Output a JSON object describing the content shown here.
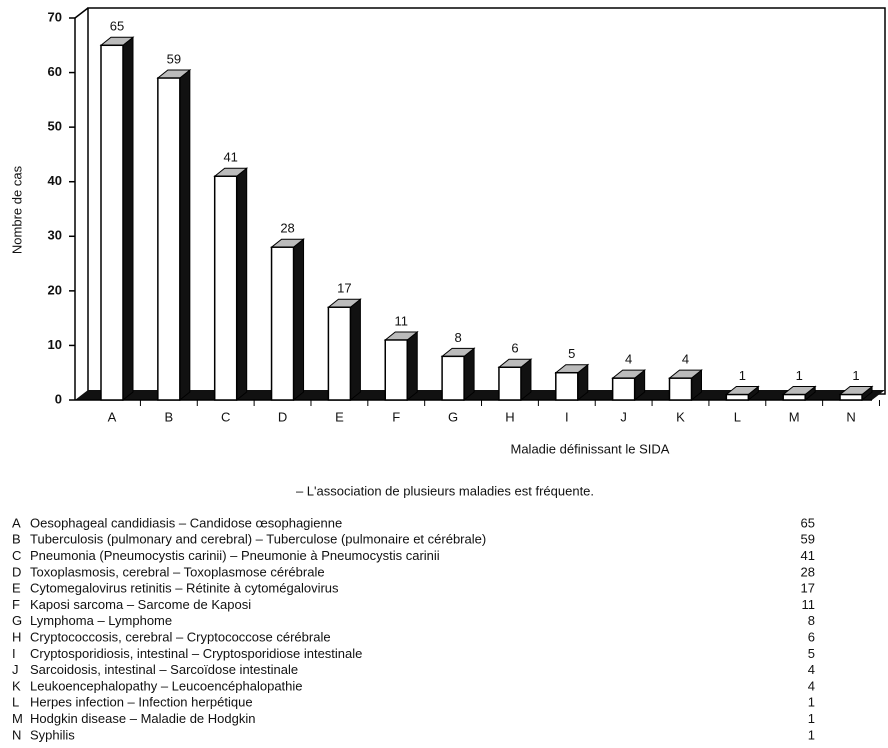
{
  "chart_data": {
    "type": "bar3d",
    "y_label": "Nombre de cas",
    "x_label": "Maladie définissant le SIDA",
    "note": "– L'association de plusieurs maladies est fréquente.",
    "categories": [
      "A",
      "B",
      "C",
      "D",
      "E",
      "F",
      "G",
      "H",
      "I",
      "J",
      "K",
      "L",
      "M",
      "N"
    ],
    "values": [
      65,
      59,
      41,
      28,
      17,
      11,
      8,
      6,
      5,
      4,
      4,
      1,
      1,
      1
    ],
    "descriptions": [
      "Oesophageal candidiasis – Candidose œsophagienne",
      "Tuberculosis (pulmonary and cerebral) – Tuberculose (pulmonaire et cérébrale)",
      "Pneumonia (Pneumocystis carinii) – Pneumonie à Pneumocystis carinii",
      "Toxoplasmosis, cerebral – Toxoplasmose cérébrale",
      "Cytomegalovirus retinitis – Rétinite à cytomégalovirus",
      "Kaposi sarcoma – Sarcome de Kaposi",
      "Lymphoma – Lymphome",
      "Cryptococcosis, cerebral – Cryptococcose cérébrale",
      "Cryptosporidiosis, intestinal – Cryptosporidiose intestinale",
      "Sarcoidosis, intestinal – Sarcoïdose intestinale",
      "Leukoencephalopathy – Leucoencéphalopathie",
      "Herpes infection – Infection herpétique",
      "Hodgkin disease – Maladie de Hodgkin",
      "Syphilis"
    ],
    "color": "#ffffff",
    "side_color": "#111111",
    "top_color": "#bbbbbb",
    "ylim": [
      0,
      70
    ],
    "yticks": [
      0,
      10,
      20,
      30,
      40,
      50,
      60,
      70
    ]
  }
}
